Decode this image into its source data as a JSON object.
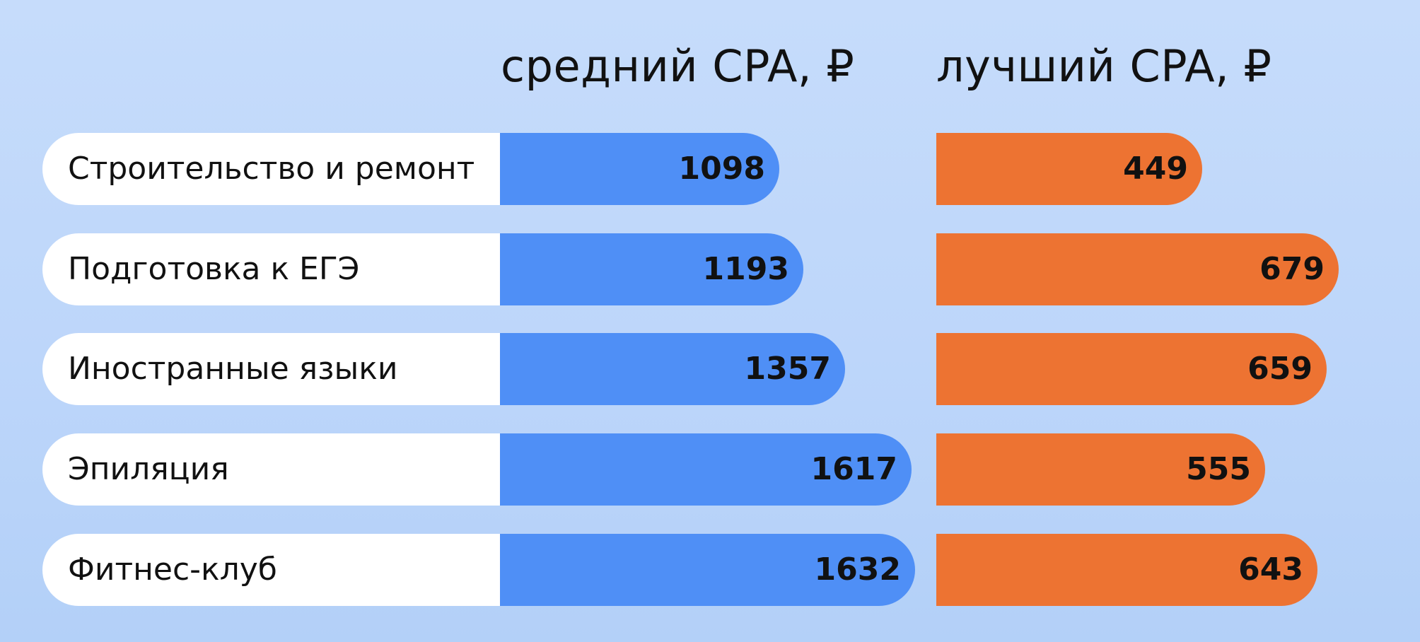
{
  "chart_data": {
    "type": "bar",
    "orientation": "horizontal",
    "title": "",
    "categories": [
      "Строительство и ремонт",
      "Подготовка к ЕГЭ",
      "Иностранные языки",
      "Эпиляция",
      "Фитнес-клуб"
    ],
    "series": [
      {
        "name": "средний CPA, ₽",
        "color": "#4f8ff6",
        "values": [
          1098,
          1193,
          1357,
          1617,
          1632
        ]
      },
      {
        "name": "лучший CPA, ₽",
        "color": "#ed7332",
        "values": [
          449,
          679,
          659,
          555,
          643
        ]
      }
    ],
    "grid": false,
    "legend": "none"
  }
}
